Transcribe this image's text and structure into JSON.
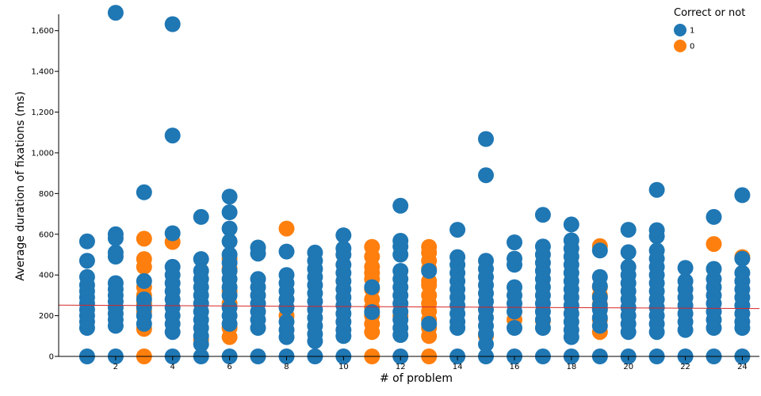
{
  "chart_data": {
    "type": "scatter",
    "title": "",
    "xlabel": "# of problem",
    "ylabel": "Average duration of fixations (ms)",
    "xlim": [
      0,
      24.6
    ],
    "ylim": [
      0,
      1700
    ],
    "x_ticks": [
      "2",
      "4",
      "6",
      "8",
      "10",
      "12",
      "14",
      "16",
      "18",
      "20",
      "22",
      "24"
    ],
    "y_ticks": [
      "0",
      "200",
      "400",
      "600",
      "800",
      "1,000",
      "1,200",
      "1,400",
      "1,600"
    ],
    "reference_line": {
      "color": "#d62728",
      "y_start": 252,
      "y_end": 235
    },
    "grid": false,
    "legend": {
      "title": "Correct or not",
      "position": "top-right",
      "entries": [
        {
          "label": "1",
          "color": "#1f77b4"
        },
        {
          "label": "0",
          "color": "#ff7f0e"
        }
      ]
    },
    "series": [
      {
        "name": "0",
        "color": "#ff7f0e",
        "points": [
          [
            3,
            578
          ],
          [
            3,
            478
          ],
          [
            3,
            440
          ],
          [
            3,
            340
          ],
          [
            3,
            300
          ],
          [
            3,
            260
          ],
          [
            3,
            220
          ],
          [
            3,
            135
          ],
          [
            3,
            0
          ],
          [
            4,
            562
          ],
          [
            5,
            82
          ],
          [
            6,
            480
          ],
          [
            6,
            430
          ],
          [
            6,
            320
          ],
          [
            6,
            140
          ],
          [
            6,
            95
          ],
          [
            6,
            260
          ],
          [
            8,
            628
          ],
          [
            8,
            200
          ],
          [
            11,
            538
          ],
          [
            11,
            490
          ],
          [
            11,
            440
          ],
          [
            11,
            410
          ],
          [
            11,
            380
          ],
          [
            11,
            330
          ],
          [
            11,
            280
          ],
          [
            11,
            240
          ],
          [
            11,
            200
          ],
          [
            11,
            160
          ],
          [
            11,
            120
          ],
          [
            11,
            0
          ],
          [
            12,
            198
          ],
          [
            13,
            538
          ],
          [
            13,
            510
          ],
          [
            13,
            470
          ],
          [
            13,
            430
          ],
          [
            13,
            370
          ],
          [
            13,
            350
          ],
          [
            13,
            300
          ],
          [
            13,
            260
          ],
          [
            13,
            222
          ],
          [
            13,
            180
          ],
          [
            13,
            140
          ],
          [
            13,
            100
          ],
          [
            13,
            0
          ],
          [
            15,
            100
          ],
          [
            16,
            180
          ],
          [
            17,
            175
          ],
          [
            19,
            542
          ],
          [
            19,
            340
          ],
          [
            19,
            300
          ],
          [
            19,
            255
          ],
          [
            19,
            235
          ],
          [
            19,
            180
          ],
          [
            19,
            120
          ],
          [
            23,
            552
          ],
          [
            24,
            488
          ]
        ]
      },
      {
        "name": "1",
        "color": "#1f77b4",
        "points": [
          [
            1,
            565
          ],
          [
            1,
            470
          ],
          [
            1,
            390
          ],
          [
            1,
            350
          ],
          [
            1,
            320
          ],
          [
            1,
            290
          ],
          [
            1,
            260
          ],
          [
            1,
            230
          ],
          [
            1,
            200
          ],
          [
            1,
            170
          ],
          [
            1,
            140
          ],
          [
            1,
            0
          ],
          [
            2,
            1688
          ],
          [
            2,
            600
          ],
          [
            2,
            580
          ],
          [
            2,
            510
          ],
          [
            2,
            490
          ],
          [
            2,
            360
          ],
          [
            2,
            330
          ],
          [
            2,
            300
          ],
          [
            2,
            270
          ],
          [
            2,
            240
          ],
          [
            2,
            210
          ],
          [
            2,
            180
          ],
          [
            2,
            150
          ],
          [
            2,
            0
          ],
          [
            3,
            806
          ],
          [
            3,
            370
          ],
          [
            3,
            280
          ],
          [
            3,
            240
          ],
          [
            3,
            200
          ],
          [
            3,
            160
          ],
          [
            4,
            1632
          ],
          [
            4,
            1085
          ],
          [
            4,
            605
          ],
          [
            4,
            440
          ],
          [
            4,
            400
          ],
          [
            4,
            360
          ],
          [
            4,
            320
          ],
          [
            4,
            280
          ],
          [
            4,
            240
          ],
          [
            4,
            200
          ],
          [
            4,
            160
          ],
          [
            4,
            120
          ],
          [
            4,
            0
          ],
          [
            5,
            685
          ],
          [
            5,
            478
          ],
          [
            5,
            420
          ],
          [
            5,
            380
          ],
          [
            5,
            340
          ],
          [
            5,
            300
          ],
          [
            5,
            260
          ],
          [
            5,
            220
          ],
          [
            5,
            180
          ],
          [
            5,
            140
          ],
          [
            5,
            100
          ],
          [
            5,
            60
          ],
          [
            5,
            0
          ],
          [
            6,
            785
          ],
          [
            6,
            708
          ],
          [
            6,
            628
          ],
          [
            6,
            565
          ],
          [
            6,
            500
          ],
          [
            6,
            460
          ],
          [
            6,
            420
          ],
          [
            6,
            380
          ],
          [
            6,
            340
          ],
          [
            6,
            300
          ],
          [
            6,
            240
          ],
          [
            6,
            200
          ],
          [
            6,
            160
          ],
          [
            6,
            0
          ],
          [
            7,
            535
          ],
          [
            7,
            505
          ],
          [
            7,
            380
          ],
          [
            7,
            340
          ],
          [
            7,
            300
          ],
          [
            7,
            260
          ],
          [
            7,
            220
          ],
          [
            7,
            180
          ],
          [
            7,
            140
          ],
          [
            7,
            0
          ],
          [
            8,
            515
          ],
          [
            8,
            400
          ],
          [
            8,
            360
          ],
          [
            8,
            320
          ],
          [
            8,
            280
          ],
          [
            8,
            240
          ],
          [
            8,
            170
          ],
          [
            8,
            130
          ],
          [
            8,
            95
          ],
          [
            8,
            0
          ],
          [
            9,
            510
          ],
          [
            9,
            470
          ],
          [
            9,
            430
          ],
          [
            9,
            390
          ],
          [
            9,
            350
          ],
          [
            9,
            310
          ],
          [
            9,
            270
          ],
          [
            9,
            230
          ],
          [
            9,
            190
          ],
          [
            9,
            150
          ],
          [
            9,
            110
          ],
          [
            9,
            75
          ],
          [
            9,
            0
          ],
          [
            10,
            595
          ],
          [
            10,
            530
          ],
          [
            10,
            500
          ],
          [
            10,
            450
          ],
          [
            10,
            410
          ],
          [
            10,
            370
          ],
          [
            10,
            330
          ],
          [
            10,
            290
          ],
          [
            10,
            250
          ],
          [
            10,
            210
          ],
          [
            10,
            170
          ],
          [
            10,
            130
          ],
          [
            10,
            100
          ],
          [
            10,
            0
          ],
          [
            11,
            340
          ],
          [
            11,
            218
          ],
          [
            12,
            740
          ],
          [
            12,
            568
          ],
          [
            12,
            540
          ],
          [
            12,
            500
          ],
          [
            12,
            420
          ],
          [
            12,
            380
          ],
          [
            12,
            340
          ],
          [
            12,
            300
          ],
          [
            12,
            260
          ],
          [
            12,
            220
          ],
          [
            12,
            180
          ],
          [
            12,
            140
          ],
          [
            12,
            105
          ],
          [
            12,
            0
          ],
          [
            13,
            420
          ],
          [
            13,
            160
          ],
          [
            14,
            622
          ],
          [
            14,
            488
          ],
          [
            14,
            450
          ],
          [
            14,
            410
          ],
          [
            14,
            370
          ],
          [
            14,
            330
          ],
          [
            14,
            290
          ],
          [
            14,
            250
          ],
          [
            14,
            210
          ],
          [
            14,
            170
          ],
          [
            14,
            140
          ],
          [
            14,
            0
          ],
          [
            15,
            1068
          ],
          [
            15,
            890
          ],
          [
            15,
            470
          ],
          [
            15,
            430
          ],
          [
            15,
            390
          ],
          [
            15,
            350
          ],
          [
            15,
            310
          ],
          [
            15,
            270
          ],
          [
            15,
            230
          ],
          [
            15,
            190
          ],
          [
            15,
            150
          ],
          [
            15,
            110
          ],
          [
            15,
            60
          ],
          [
            15,
            0
          ],
          [
            16,
            560
          ],
          [
            16,
            480
          ],
          [
            16,
            450
          ],
          [
            16,
            340
          ],
          [
            16,
            300
          ],
          [
            16,
            260
          ],
          [
            16,
            220
          ],
          [
            16,
            140
          ],
          [
            16,
            0
          ],
          [
            17,
            695
          ],
          [
            17,
            540
          ],
          [
            17,
            500
          ],
          [
            17,
            460
          ],
          [
            17,
            420
          ],
          [
            17,
            380
          ],
          [
            17,
            340
          ],
          [
            17,
            300
          ],
          [
            17,
            260
          ],
          [
            17,
            220
          ],
          [
            17,
            180
          ],
          [
            17,
            140
          ],
          [
            17,
            0
          ],
          [
            18,
            648
          ],
          [
            18,
            570
          ],
          [
            18,
            530
          ],
          [
            18,
            490
          ],
          [
            18,
            450
          ],
          [
            18,
            410
          ],
          [
            18,
            370
          ],
          [
            18,
            330
          ],
          [
            18,
            290
          ],
          [
            18,
            250
          ],
          [
            18,
            210
          ],
          [
            18,
            170
          ],
          [
            18,
            130
          ],
          [
            18,
            95
          ],
          [
            18,
            0
          ],
          [
            19,
            520
          ],
          [
            19,
            390
          ],
          [
            19,
            345
          ],
          [
            19,
            290
          ],
          [
            19,
            250
          ],
          [
            19,
            230
          ],
          [
            19,
            190
          ],
          [
            19,
            150
          ],
          [
            19,
            0
          ],
          [
            20,
            622
          ],
          [
            20,
            512
          ],
          [
            20,
            440
          ],
          [
            20,
            400
          ],
          [
            20,
            360
          ],
          [
            20,
            320
          ],
          [
            20,
            280
          ],
          [
            20,
            240
          ],
          [
            20,
            200
          ],
          [
            20,
            160
          ],
          [
            20,
            120
          ],
          [
            20,
            0
          ],
          [
            21,
            818
          ],
          [
            21,
            620
          ],
          [
            21,
            590
          ],
          [
            21,
            520
          ],
          [
            21,
            480
          ],
          [
            21,
            440
          ],
          [
            21,
            400
          ],
          [
            21,
            360
          ],
          [
            21,
            320
          ],
          [
            21,
            280
          ],
          [
            21,
            240
          ],
          [
            21,
            200
          ],
          [
            21,
            160
          ],
          [
            21,
            120
          ],
          [
            21,
            0
          ],
          [
            22,
            435
          ],
          [
            22,
            370
          ],
          [
            22,
            330
          ],
          [
            22,
            290
          ],
          [
            22,
            250
          ],
          [
            22,
            210
          ],
          [
            22,
            170
          ],
          [
            22,
            130
          ],
          [
            22,
            0
          ],
          [
            23,
            685
          ],
          [
            23,
            430
          ],
          [
            23,
            380
          ],
          [
            23,
            340
          ],
          [
            23,
            300
          ],
          [
            23,
            260
          ],
          [
            23,
            220
          ],
          [
            23,
            180
          ],
          [
            23,
            140
          ],
          [
            23,
            0
          ],
          [
            24,
            792
          ],
          [
            24,
            480
          ],
          [
            24,
            410
          ],
          [
            24,
            370
          ],
          [
            24,
            330
          ],
          [
            24,
            290
          ],
          [
            24,
            250
          ],
          [
            24,
            210
          ],
          [
            24,
            170
          ],
          [
            24,
            140
          ],
          [
            24,
            0
          ]
        ]
      }
    ]
  }
}
